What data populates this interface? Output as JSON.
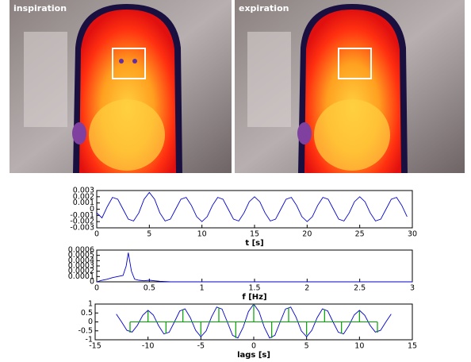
{
  "images": [
    {
      "label": "inspiration"
    },
    {
      "label": "expiration"
    }
  ],
  "chart_data": [
    {
      "type": "line",
      "x": [
        0,
        0.5,
        1,
        1.5,
        2,
        2.5,
        3,
        3.5,
        4,
        4.5,
        5,
        5.5,
        6,
        6.5,
        7,
        7.5,
        8,
        8.5,
        9,
        9.5,
        10,
        10.5,
        11,
        11.5,
        12,
        12.5,
        13,
        13.5,
        14,
        14.5,
        15,
        15.5,
        16,
        16.5,
        17,
        17.5,
        18,
        18.5,
        19,
        19.5,
        20,
        20.5,
        21,
        21.5,
        22,
        22.5,
        23,
        23.5,
        24,
        24.5,
        25,
        25.5,
        26,
        26.5,
        27,
        27.5,
        28,
        28.5,
        29,
        29.5
      ],
      "series": [
        {
          "color": "#0000cc",
          "values": [
            -0.0006,
            -0.0014,
            0.0004,
            0.0019,
            0.0016,
            0,
            -0.0016,
            -0.0019,
            -0.0006,
            0.0016,
            0.0027,
            0.0016,
            -0.0006,
            -0.0019,
            -0.0016,
            0,
            0.0016,
            0.0019,
            0.0006,
            -0.0012,
            -0.002,
            -0.0012,
            0.0006,
            0.0019,
            0.0016,
            0,
            -0.0016,
            -0.0019,
            -0.0006,
            0.0012,
            0.002,
            0.0012,
            -0.0006,
            -0.0019,
            -0.0016,
            0,
            0.0016,
            0.0019,
            0.0006,
            -0.0012,
            -0.002,
            -0.0012,
            0.0006,
            0.0019,
            0.0016,
            0,
            -0.0016,
            -0.0019,
            -0.0006,
            0.0012,
            0.002,
            0.0012,
            -0.0006,
            -0.0019,
            -0.0016,
            0,
            0.0016,
            0.0019,
            0.0006,
            -0.0012
          ]
        }
      ],
      "xlim": [
        0,
        30
      ],
      "xticks": [
        0,
        5,
        10,
        15,
        20,
        25,
        30
      ],
      "ylim": [
        -0.003,
        0.003
      ],
      "yticks": [
        0.003,
        0.002,
        0.001,
        0,
        -0.001,
        -0.002,
        -0.003
      ],
      "xlabel": "t [s]"
    },
    {
      "type": "line",
      "x": [
        0,
        0.05,
        0.1,
        0.15,
        0.2,
        0.25,
        0.28,
        0.3,
        0.33,
        0.36,
        0.4,
        0.45,
        0.5,
        0.55,
        0.6,
        0.7,
        0.8,
        1,
        1.5,
        2,
        2.5,
        3
      ],
      "series": [
        {
          "color": "#0000cc",
          "values": [
            0,
            3e-05,
            5e-05,
            8e-05,
            0.0001,
            0.00012,
            0.0003,
            0.00055,
            0.0002,
            5e-05,
            3e-05,
            2e-05,
            3e-05,
            2e-05,
            1e-05,
            0,
            0,
            0,
            0,
            0,
            0,
            0
          ]
        }
      ],
      "xlim": [
        0,
        3
      ],
      "xticks": [
        0,
        0.5,
        1,
        1.5,
        2,
        2.5,
        3
      ],
      "ylim": [
        0,
        0.0006
      ],
      "yticks": [
        0.0006,
        0.0005,
        0.0004,
        0.0003,
        0.0002,
        0.0001,
        0
      ],
      "xlabel": "f [Hz]"
    },
    {
      "type": "line",
      "series": [
        {
          "color": "#0000cc",
          "style": "line",
          "x": [
            -13,
            -12.5,
            -12,
            -11.5,
            -11,
            -10.5,
            -10,
            -9.5,
            -9,
            -8.5,
            -8,
            -7.5,
            -7,
            -6.5,
            -6,
            -5.5,
            -5,
            -4.5,
            -4,
            -3.5,
            -3,
            -2.5,
            -2,
            -1.5,
            -1,
            -0.5,
            0,
            0.5,
            1,
            1.5,
            2,
            2.5,
            3,
            3.5,
            4,
            4.5,
            5,
            5.5,
            6,
            6.5,
            7,
            7.5,
            8,
            8.5,
            9,
            9.5,
            10,
            10.5,
            11,
            11.5,
            12,
            12.5,
            13
          ],
          "values": [
            0.44,
            0,
            -0.47,
            -0.57,
            -0.19,
            0.37,
            0.65,
            0.39,
            -0.21,
            -0.67,
            -0.58,
            0,
            0.61,
            0.73,
            0.24,
            -0.47,
            -0.83,
            -0.5,
            0.27,
            0.83,
            0.72,
            0,
            -0.75,
            -0.9,
            -0.3,
            0.58,
            1,
            0.58,
            -0.3,
            -0.9,
            -0.75,
            0,
            0.72,
            0.83,
            0.27,
            -0.5,
            -0.83,
            -0.47,
            0.24,
            0.73,
            0.61,
            0,
            -0.58,
            -0.67,
            -0.21,
            0.39,
            0.65,
            0.37,
            -0.19,
            -0.57,
            -0.47,
            0,
            0.44
          ]
        },
        {
          "color": "#00a000",
          "style": "stem",
          "x": [
            -11.7,
            -10,
            -8.3,
            -6.7,
            -5,
            -3.3,
            -1.7,
            0,
            1.7,
            3.3,
            5,
            6.7,
            8.3,
            10,
            11.7
          ],
          "values": [
            -0.6,
            0.6,
            -0.65,
            0.7,
            -0.75,
            0.8,
            -0.9,
            1,
            -0.9,
            0.8,
            -0.75,
            0.7,
            -0.65,
            0.6,
            -0.6
          ]
        }
      ],
      "xlim": [
        -15,
        15
      ],
      "xticks": [
        -15,
        -10,
        -5,
        0,
        5,
        10,
        15
      ],
      "ylim": [
        -1,
        1
      ],
      "yticks": [
        1,
        0.5,
        0,
        -0.5,
        -1
      ],
      "xlabel": "lags [s]"
    }
  ]
}
